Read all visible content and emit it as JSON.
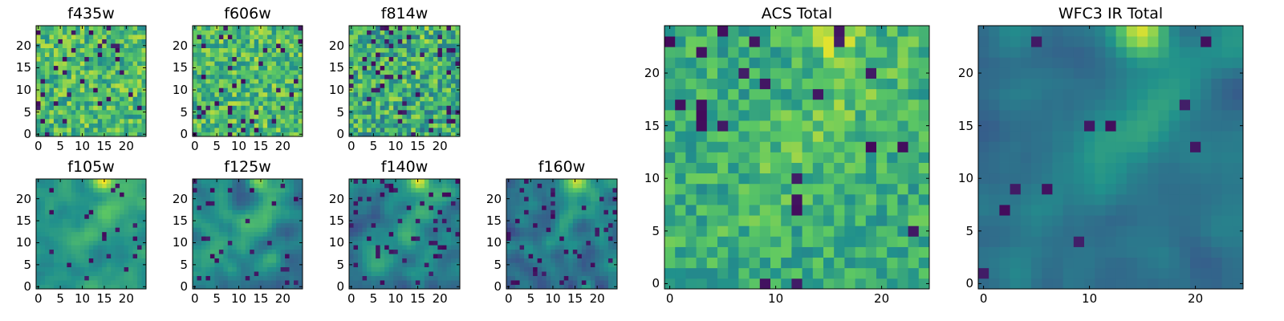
{
  "figure": {
    "colormap": [
      "#440154",
      "#3b528b",
      "#21918c",
      "#5ec962",
      "#fde725"
    ]
  },
  "chart_data": [
    {
      "type": "heatmap",
      "title": "f435w",
      "grid": false,
      "xlim": [
        -0.5,
        24.5
      ],
      "ylim": [
        -0.5,
        24.5
      ],
      "x_ticks": [
        "0",
        "5",
        "10",
        "15",
        "20"
      ],
      "y_ticks": [
        "0",
        "5",
        "10",
        "15",
        "20"
      ],
      "style": "noise",
      "baseline": 0.68,
      "spread": 0.22,
      "hotspot": 0,
      "dark_spots": 0.06,
      "seed": 11
    },
    {
      "type": "heatmap",
      "title": "f606w",
      "grid": false,
      "xlim": [
        -0.5,
        24.5
      ],
      "ylim": [
        -0.5,
        24.5
      ],
      "x_ticks": [
        "0",
        "5",
        "10",
        "15",
        "20"
      ],
      "y_ticks": [
        "0",
        "5",
        "10",
        "15",
        "20"
      ],
      "style": "noise",
      "baseline": 0.68,
      "spread": 0.22,
      "hotspot": 0.1,
      "dark_spots": 0.05,
      "seed": 23
    },
    {
      "type": "heatmap",
      "title": "f814w",
      "grid": false,
      "xlim": [
        -0.5,
        24.5
      ],
      "ylim": [
        -0.5,
        24.5
      ],
      "x_ticks": [
        "0",
        "5",
        "10",
        "15",
        "20"
      ],
      "y_ticks": [
        "0",
        "5",
        "10",
        "15",
        "20"
      ],
      "style": "noise",
      "baseline": 0.62,
      "spread": 0.25,
      "hotspot": 0.15,
      "dark_spots": 0.08,
      "seed": 37
    },
    {
      "type": "heatmap",
      "title": "f105w",
      "grid": false,
      "xlim": [
        -0.5,
        24.5
      ],
      "ylim": [
        -0.5,
        24.5
      ],
      "x_ticks": [
        "0",
        "5",
        "10",
        "15",
        "20"
      ],
      "y_ticks": [
        "0",
        "5",
        "10",
        "15",
        "20"
      ],
      "style": "smooth",
      "baseline": 0.52,
      "spread": 0.14,
      "hotspot": 0.9,
      "dark_spots": 0.03,
      "seed": 41
    },
    {
      "type": "heatmap",
      "title": "f125w",
      "grid": false,
      "xlim": [
        -0.5,
        24.5
      ],
      "ylim": [
        -0.5,
        24.5
      ],
      "x_ticks": [
        "0",
        "5",
        "10",
        "15",
        "20"
      ],
      "y_ticks": [
        "0",
        "5",
        "10",
        "15",
        "20"
      ],
      "style": "smooth",
      "baseline": 0.46,
      "spread": 0.18,
      "hotspot": 0.95,
      "dark_spots": 0.06,
      "seed": 53
    },
    {
      "type": "heatmap",
      "title": "f140w",
      "grid": false,
      "xlim": [
        -0.5,
        24.5
      ],
      "ylim": [
        -0.5,
        24.5
      ],
      "x_ticks": [
        "0",
        "5",
        "10",
        "15",
        "20"
      ],
      "y_ticks": [
        "0",
        "5",
        "10",
        "15",
        "20"
      ],
      "style": "smooth",
      "baseline": 0.44,
      "spread": 0.18,
      "hotspot": 0.95,
      "dark_spots": 0.06,
      "seed": 67
    },
    {
      "type": "heatmap",
      "title": "f160w",
      "grid": false,
      "xlim": [
        -0.5,
        24.5
      ],
      "ylim": [
        -0.5,
        24.5
      ],
      "x_ticks": [
        "0",
        "5",
        "10",
        "15",
        "20"
      ],
      "y_ticks": [
        "0",
        "5",
        "10",
        "15",
        "20"
      ],
      "style": "smooth",
      "baseline": 0.4,
      "spread": 0.2,
      "hotspot": 0.95,
      "dark_spots": 0.08,
      "seed": 79
    },
    {
      "type": "heatmap",
      "title": "ACS Total",
      "grid": false,
      "xlim": [
        -0.5,
        24.5
      ],
      "ylim": [
        -0.5,
        24.5
      ],
      "x_ticks": [
        "0",
        "10",
        "20"
      ],
      "y_ticks": [
        "0",
        "5",
        "10",
        "15",
        "20"
      ],
      "style": "noise",
      "baseline": 0.62,
      "spread": 0.16,
      "hotspot": 0.7,
      "dark_spots": 0.04,
      "seed": 97
    },
    {
      "type": "heatmap",
      "title": "WFC3 IR Total",
      "grid": false,
      "xlim": [
        -0.5,
        24.5
      ],
      "ylim": [
        -0.5,
        24.5
      ],
      "x_ticks": [
        "0",
        "10",
        "20"
      ],
      "y_ticks": [
        "0",
        "5",
        "10",
        "15",
        "20"
      ],
      "style": "smooth",
      "baseline": 0.38,
      "spread": 0.1,
      "hotspot": 1.0,
      "dark_spots": 0.02,
      "seed": 113
    }
  ]
}
